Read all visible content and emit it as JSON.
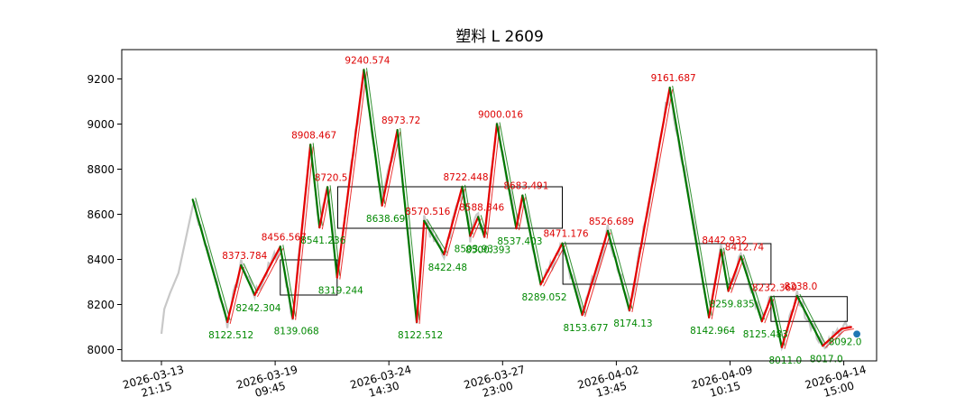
{
  "chart_data": {
    "type": "line",
    "title": "塑料 L 2609",
    "xlabel": "",
    "ylabel": "",
    "ylim": [
      7950,
      9330
    ],
    "yticks": [
      8000,
      8200,
      8400,
      8600,
      8800,
      9000,
      9200
    ],
    "xticks": [
      {
        "date": "2026-03-13",
        "time": "21:15"
      },
      {
        "date": "2026-03-19",
        "time": "09:45"
      },
      {
        "date": "2026-03-24",
        "time": "14:30"
      },
      {
        "date": "2026-03-27",
        "time": "23:00"
      },
      {
        "date": "2026-04-02",
        "time": "13:45"
      },
      {
        "date": "2026-04-09",
        "time": "10:15"
      },
      {
        "date": "2026-04-14",
        "time": "15:00"
      }
    ],
    "colors": {
      "price": "#c8c8c8",
      "up": "#e60000",
      "down": "#007700",
      "box": "#000000",
      "label_high": "#dd0000",
      "label_low": "#008800"
    },
    "pivots": [
      {
        "x": 0.55,
        "y": 8665,
        "label": ""
      },
      {
        "x": 1.16,
        "y": 8122.512,
        "label": "8122.512"
      },
      {
        "x": 1.4,
        "y": 8373.784,
        "label": "8373.784"
      },
      {
        "x": 1.64,
        "y": 8242.304,
        "label": "8242.304"
      },
      {
        "x": 2.09,
        "y": 8456.567,
        "label": "8456.567"
      },
      {
        "x": 2.31,
        "y": 8139.068,
        "label": "8139.068"
      },
      {
        "x": 2.62,
        "y": 8908.467,
        "label": "8908.467"
      },
      {
        "x": 2.78,
        "y": 8541.236,
        "label": "8541.236"
      },
      {
        "x": 2.92,
        "y": 8720.5,
        "label": "8720.5"
      },
      {
        "x": 3.09,
        "y": 8319.244,
        "label": "8319.244"
      },
      {
        "x": 3.56,
        "y": 9240.574,
        "label": "9240.574"
      },
      {
        "x": 3.88,
        "y": 8638.69,
        "label": "8638.69"
      },
      {
        "x": 4.15,
        "y": 8973.72,
        "label": "8973.72"
      },
      {
        "x": 4.49,
        "y": 8122.512,
        "label": "8122.512"
      },
      {
        "x": 4.62,
        "y": 8570.516,
        "label": "8570.516"
      },
      {
        "x": 4.97,
        "y": 8422.48,
        "label": "8422.48"
      },
      {
        "x": 5.29,
        "y": 8722.448,
        "label": "8722.448"
      },
      {
        "x": 5.43,
        "y": 8503.93,
        "label": "8503.93"
      },
      {
        "x": 5.57,
        "y": 8588.346,
        "label": "8588.346"
      },
      {
        "x": 5.68,
        "y": 8500.393,
        "label": "8500.393"
      },
      {
        "x": 5.9,
        "y": 9000.016,
        "label": "9000.016"
      },
      {
        "x": 6.24,
        "y": 8537.403,
        "label": "8537.403"
      },
      {
        "x": 6.35,
        "y": 8683.491,
        "label": "8683.491"
      },
      {
        "x": 6.67,
        "y": 8289.052,
        "label": "8289.052"
      },
      {
        "x": 7.05,
        "y": 8471.176,
        "label": "8471.176"
      },
      {
        "x": 7.4,
        "y": 8153.677,
        "label": "8153.677"
      },
      {
        "x": 7.85,
        "y": 8526.689,
        "label": "8526.689"
      },
      {
        "x": 8.23,
        "y": 8174.13,
        "label": "8174.13"
      },
      {
        "x": 8.94,
        "y": 9161.687,
        "label": "9161.687"
      },
      {
        "x": 9.63,
        "y": 8142.964,
        "label": "8142.964"
      },
      {
        "x": 9.84,
        "y": 8442.932,
        "label": "8442.932"
      },
      {
        "x": 9.97,
        "y": 8259.835,
        "label": "8259.835"
      },
      {
        "x": 10.19,
        "y": 8412.74,
        "label": "8412.74"
      },
      {
        "x": 10.56,
        "y": 8125.483,
        "label": "8125.483"
      },
      {
        "x": 10.72,
        "y": 8232.369,
        "label": "8232.369"
      },
      {
        "x": 10.91,
        "y": 8011.0,
        "label": "8011.0"
      },
      {
        "x": 11.18,
        "y": 8238.0,
        "label": "8238.0"
      },
      {
        "x": 11.63,
        "y": 8017.0,
        "label": "8017.0"
      },
      {
        "x": 11.96,
        "y": 8092.0,
        "label": "8092.0"
      },
      {
        "x": 12.13,
        "y": 8100.0,
        "label": ""
      }
    ],
    "boxes": [
      {
        "x0": 2.09,
        "x1": 3.09,
        "y0": 8242,
        "y1": 8398
      },
      {
        "x0": 3.1,
        "x1": 7.05,
        "y0": 8538,
        "y1": 8722
      },
      {
        "x0": 7.06,
        "x1": 10.72,
        "y0": 8290,
        "y1": 8470
      },
      {
        "x0": 10.72,
        "x1": 12.06,
        "y0": 8125,
        "y1": 8235
      }
    ],
    "last_marker": {
      "x": 12.23,
      "y": 8069
    }
  }
}
